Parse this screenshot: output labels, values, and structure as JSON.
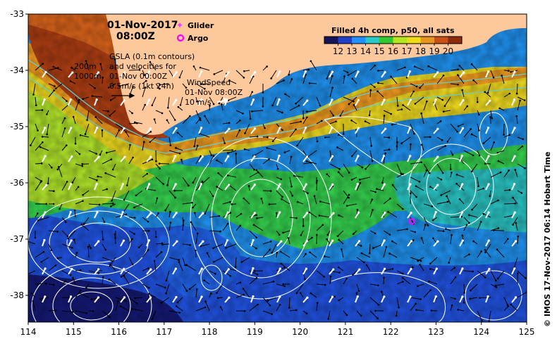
{
  "header": {
    "date": "01-Nov-2017",
    "time": "08:00Z"
  },
  "legend": {
    "glider": "Glider",
    "argo": "Argo",
    "glider_color": "#ff33ff",
    "argo_color": "#ff00ff"
  },
  "colorbar": {
    "title": "Filled 4h comp, p50, all sats",
    "ticks": [
      "12",
      "13",
      "14",
      "15",
      "16",
      "17",
      "18",
      "19",
      "20"
    ],
    "colors": [
      "#14145a",
      "#1f3fc8",
      "#1e90ff",
      "#28c8c8",
      "#32c832",
      "#b4e61e",
      "#f0dc14",
      "#e6961e",
      "#c85014",
      "#8c2a0a"
    ]
  },
  "annotations": {
    "gsla": [
      "GSLA (0.1m contours)",
      "and velocities for",
      "01-Nov 00:00Z",
      "0.5m/s (1kt 24h)"
    ],
    "depth": [
      "200m",
      "1000m"
    ],
    "wind": [
      "WindSpeed",
      "01-Nov 08:00Z",
      "10 m/s"
    ]
  },
  "axes": {
    "x_ticks": [
      "114",
      "115",
      "116",
      "117",
      "118",
      "119",
      "120",
      "121",
      "122",
      "123",
      "124",
      "125"
    ],
    "y_ticks": [
      "-33",
      "-34",
      "-35",
      "-36",
      "-37",
      "-38"
    ]
  },
  "credit": "© IMOS 17-Nov-2017 06:14 Hobart Time",
  "colors": {
    "land": "#fdc99c",
    "contour": "#ffffff",
    "isobath": "#5fd3d3"
  }
}
